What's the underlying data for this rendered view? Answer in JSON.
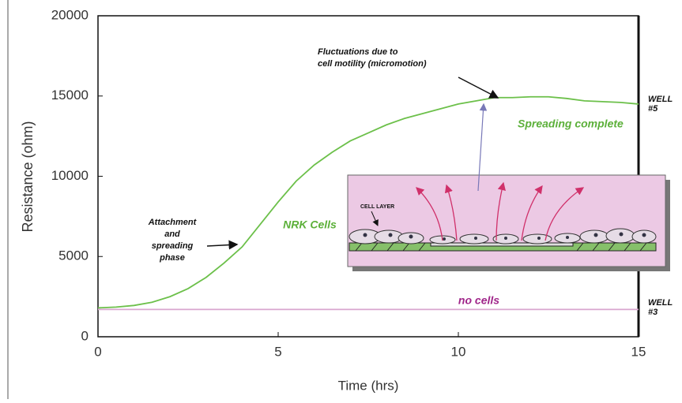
{
  "chart_data": {
    "type": "line",
    "ylabel": "Resistance (ohm)",
    "xlabel": "Time (hrs)",
    "x": [
      0,
      0.5,
      1,
      1.5,
      2,
      2.5,
      3,
      3.5,
      4,
      4.5,
      5,
      5.5,
      6,
      6.5,
      7,
      7.5,
      8,
      8.5,
      9,
      9.5,
      10,
      10.5,
      11,
      11.5,
      12,
      12.5,
      13,
      13.5,
      14,
      14.5,
      15
    ],
    "series": [
      {
        "name": "NRK Cells",
        "color": "#6cc04a",
        "label_color": "#5cb03a",
        "values": [
          1800,
          1850,
          1950,
          2150,
          2500,
          3000,
          3700,
          4600,
          5600,
          7000,
          8400,
          9700,
          10700,
          11500,
          12200,
          12700,
          13200,
          13600,
          13900,
          14200,
          14500,
          14700,
          14900,
          14900,
          14950,
          14950,
          14850,
          14700,
          14650,
          14600,
          14500
        ]
      },
      {
        "name": "no cells",
        "color": "#d9a6cf",
        "label_color": "#a0268a",
        "values": [
          1700,
          1700,
          1700,
          1700,
          1700,
          1700,
          1700,
          1700,
          1700,
          1700,
          1700,
          1700,
          1700,
          1700,
          1700,
          1700,
          1700,
          1700,
          1700,
          1700,
          1700,
          1700,
          1700,
          1700,
          1700,
          1700,
          1700,
          1700,
          1700,
          1700,
          1700
        ]
      }
    ],
    "xlim": [
      0,
      15
    ],
    "ylim": [
      0,
      20000
    ],
    "xticks": [
      0,
      5,
      10,
      15
    ],
    "yticks": [
      0,
      5000,
      10000,
      15000,
      20000
    ],
    "annotations": {
      "micromotion": [
        "Fluctuations due to",
        "cell motility (micromotion)"
      ],
      "spreading_complete": "Spreading complete",
      "attachment": [
        "Attachment",
        "and",
        "spreading",
        "phase"
      ],
      "well5": [
        "WELL",
        "#5"
      ],
      "well3": [
        "WELL",
        "#3"
      ],
      "cell_layer": "CELL LAYER"
    }
  }
}
